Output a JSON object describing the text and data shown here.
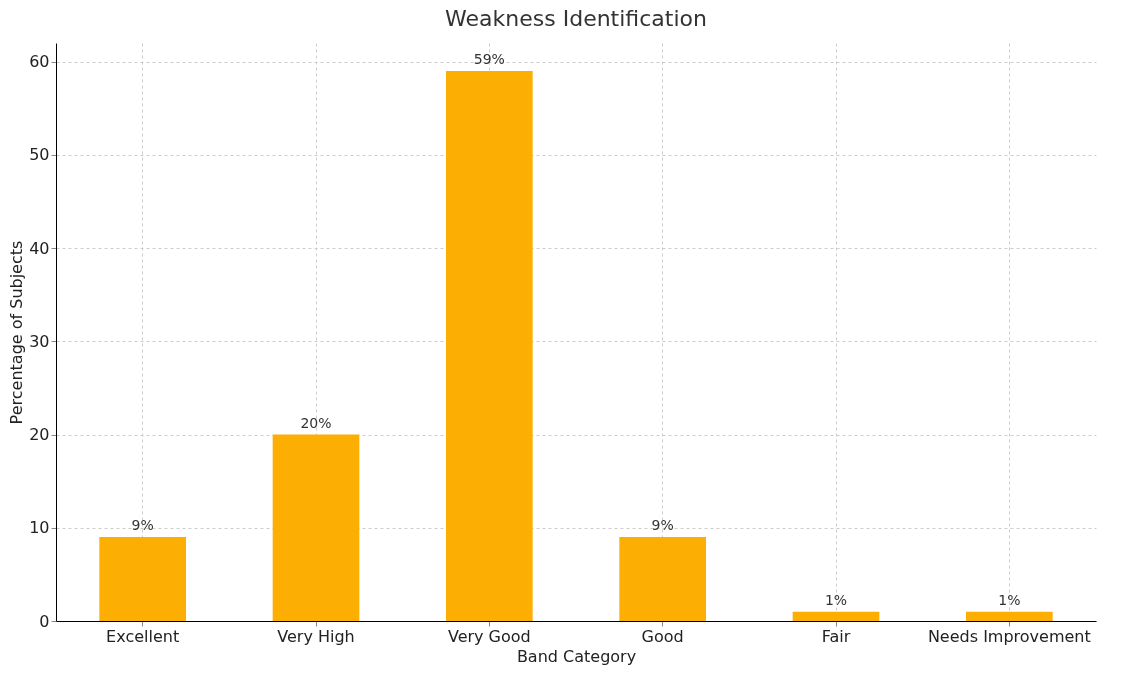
{
  "chart_data": {
    "type": "bar",
    "title": "Weakness Identification",
    "xlabel": "Band Category",
    "ylabel": "Percentage of Subjects",
    "categories": [
      "Excellent",
      "Very High",
      "Very Good",
      "Good",
      "Fair",
      "Needs Improvement"
    ],
    "values": [
      9,
      20,
      59,
      9,
      1,
      1
    ],
    "value_labels": [
      "9%",
      "20%",
      "59%",
      "9%",
      "1%",
      "1%"
    ],
    "color": "#fdae03",
    "ylim": [
      0,
      62
    ],
    "yticks": [
      0,
      10,
      20,
      30,
      40,
      50,
      60
    ],
    "grid": true
  }
}
